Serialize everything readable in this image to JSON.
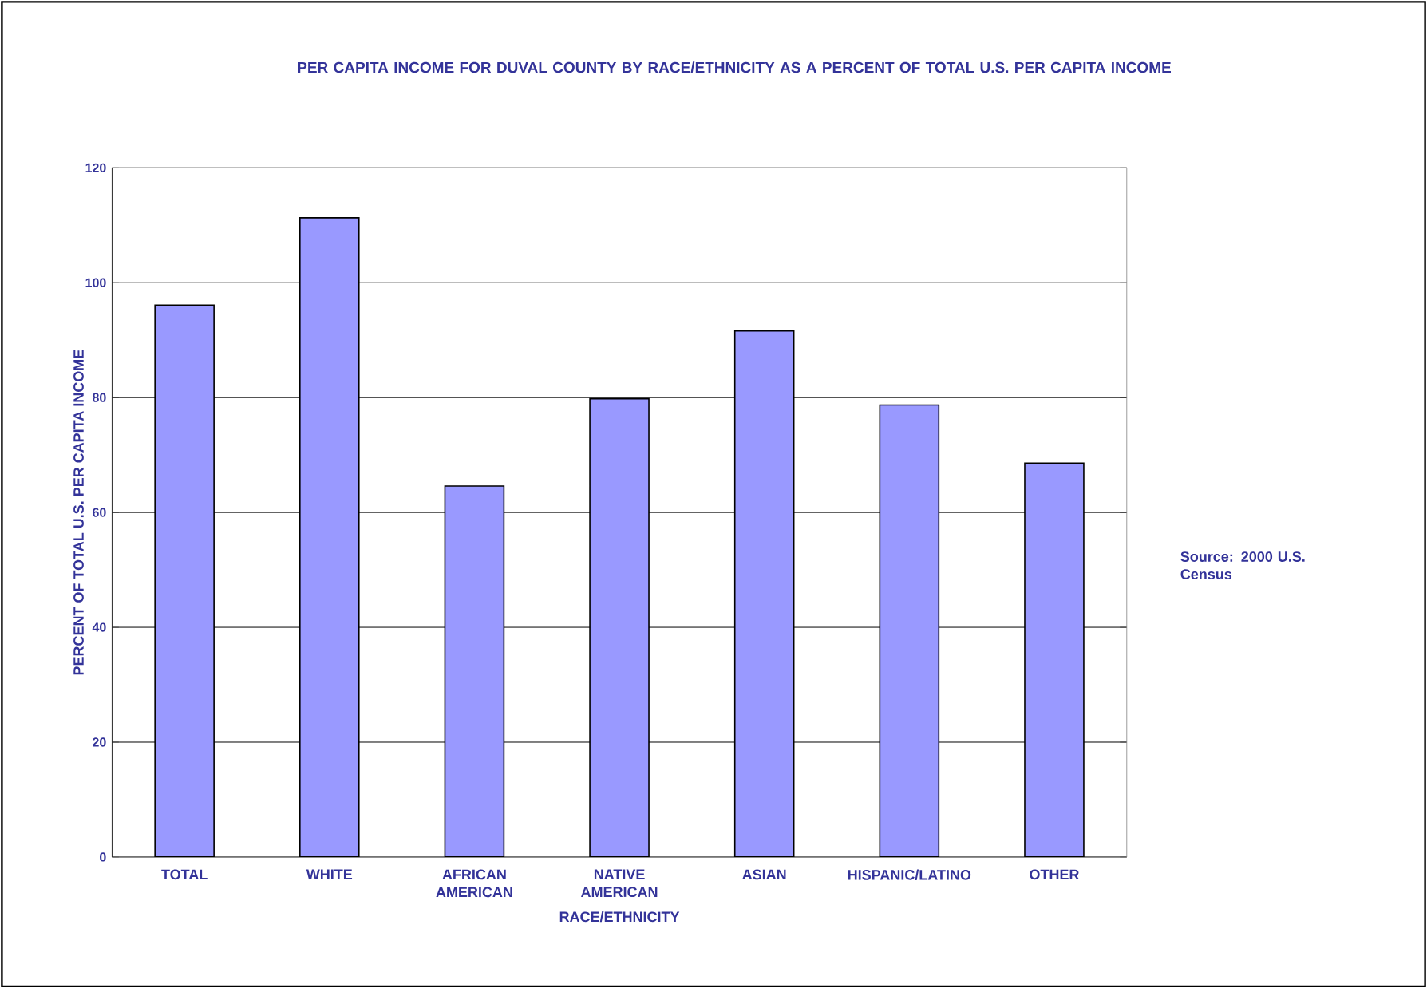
{
  "chart_data": {
    "type": "bar",
    "title": "PER CAPITA INCOME FOR DUVAL COUNTY BY RACE/ETHNICITY AS A PERCENT OF TOTAL U.S. PER CAPITA INCOME",
    "xlabel": "RACE/ETHNICITY",
    "ylabel": "PERCENT OF TOTAL U.S. PER CAPITA INCOME",
    "categories": [
      "TOTAL",
      "WHITE",
      "AFRICAN AMERICAN",
      "NATIVE AMERICAN",
      "ASIAN",
      "HISPANIC/LATINO",
      "OTHER"
    ],
    "values": [
      96.1,
      111.3,
      64.6,
      79.8,
      91.6,
      78.7,
      68.6
    ],
    "color": "#9999ff",
    "ylim": [
      0,
      120
    ],
    "yticks": [
      0,
      20,
      40,
      60,
      80,
      100,
      120
    ],
    "grid": "y",
    "annotations": [
      "Source: 2000 U.S. Census"
    ]
  }
}
